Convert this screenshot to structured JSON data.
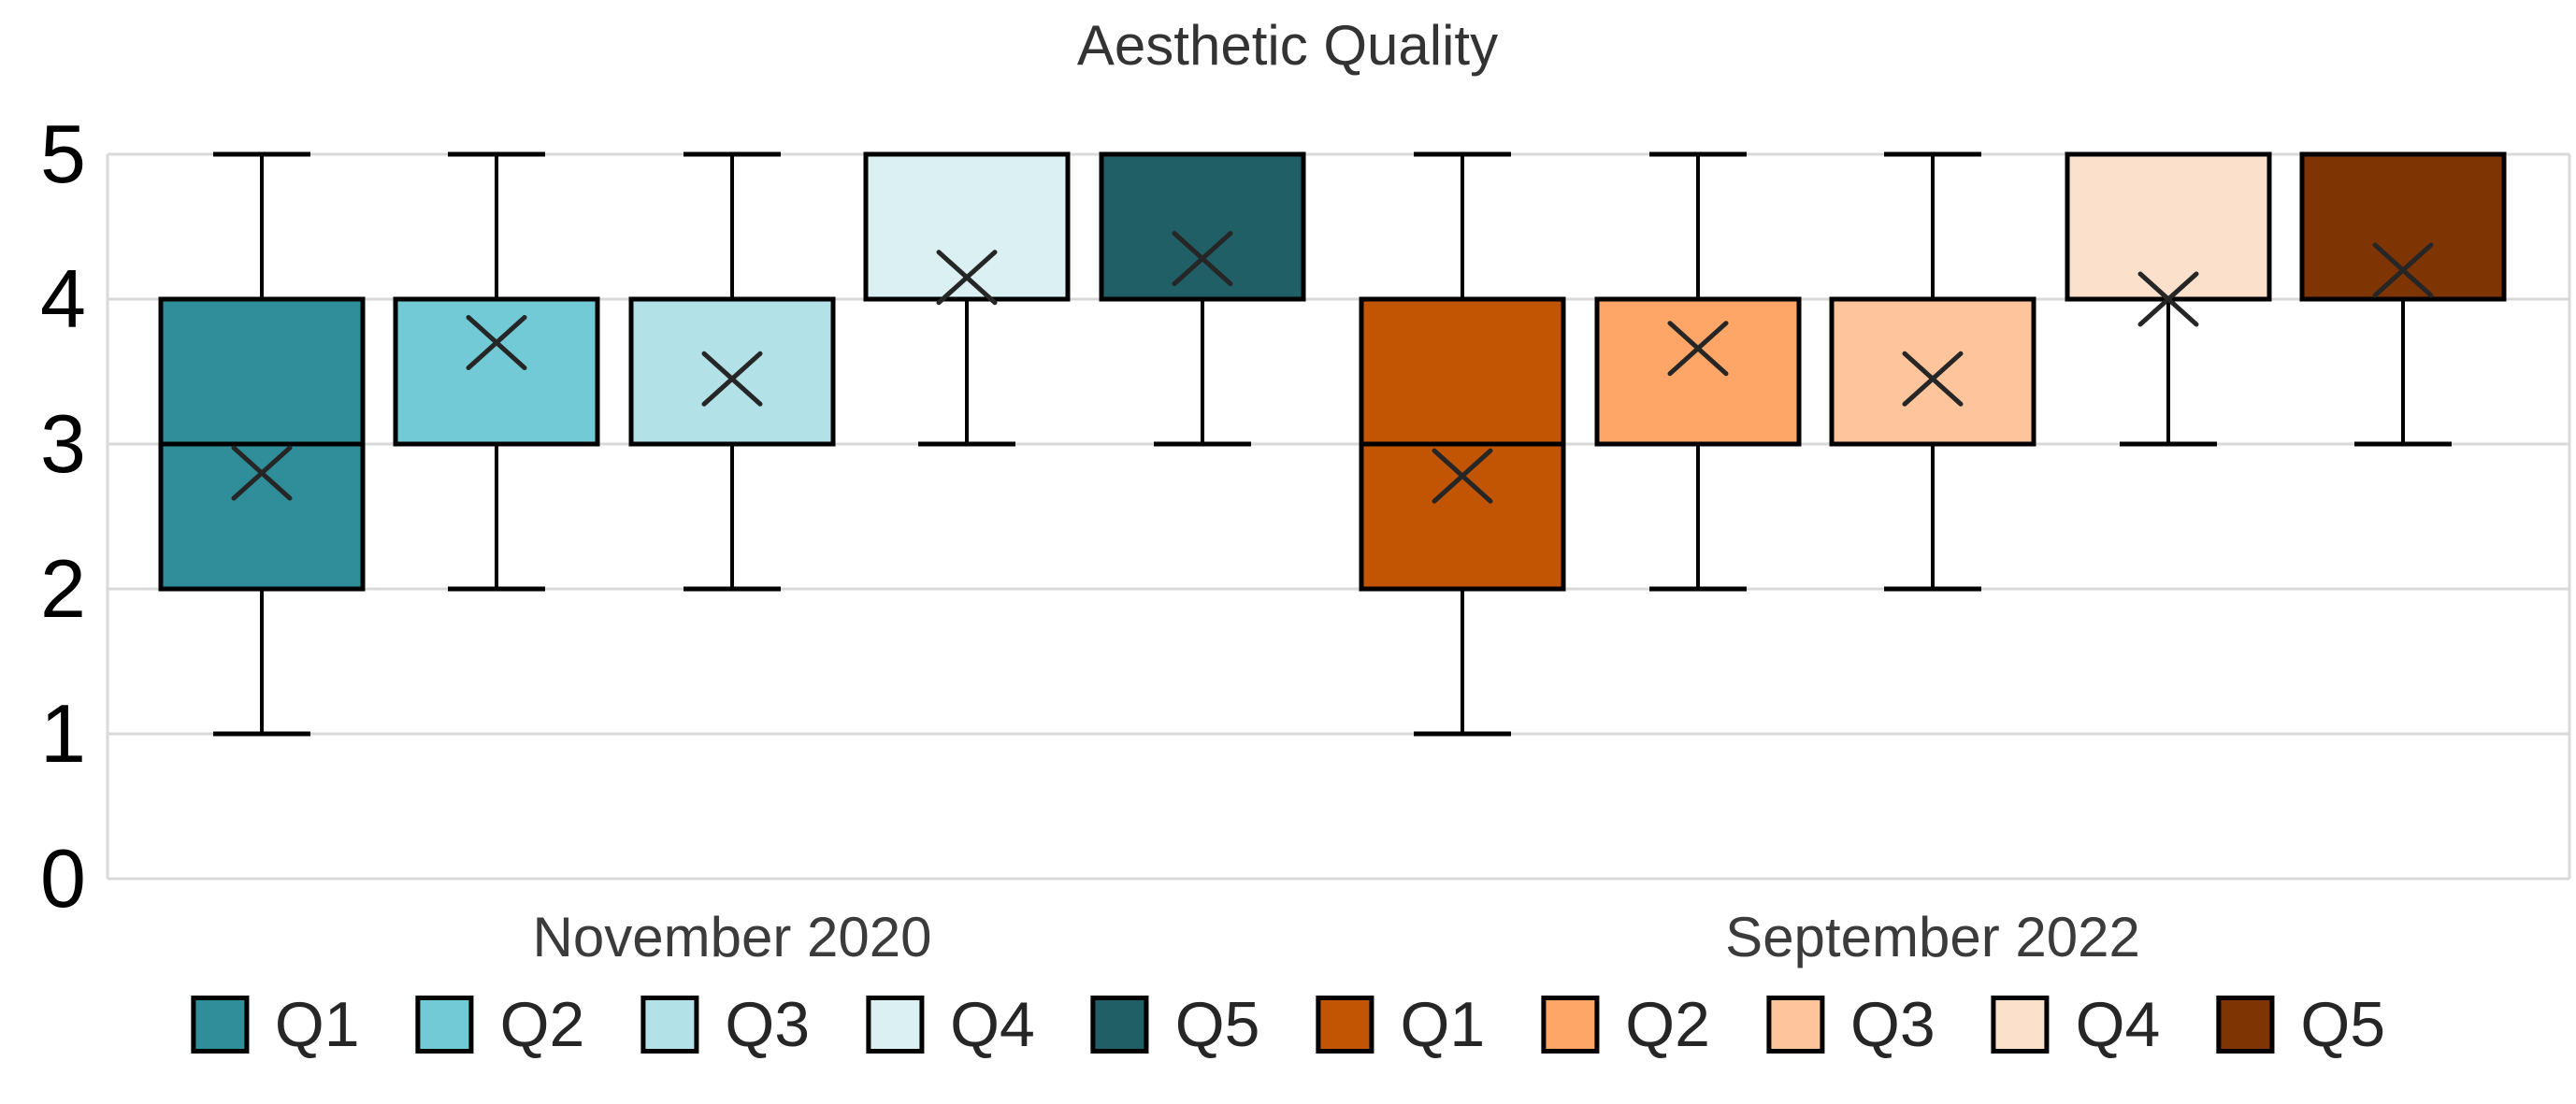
{
  "chart_data": {
    "type": "boxplot",
    "title": "Aesthetic Quality",
    "xlabel": "",
    "ylabel": "",
    "ylim": [
      0,
      5
    ],
    "yticks": [
      "0",
      "1",
      "2",
      "3",
      "4",
      "5"
    ],
    "grid": "horizontal",
    "legend_position": "bottom",
    "groups": [
      {
        "label": "November 2020",
        "series": [
          {
            "name": "Q1",
            "color": "#2F8E9A",
            "min": 1,
            "q1": 2,
            "median": 3,
            "q3": 4,
            "max": 5,
            "mean": 2.8
          },
          {
            "name": "Q2",
            "color": "#72CAD6",
            "min": 2,
            "q1": 3,
            "median": 4,
            "q3": 4,
            "max": 5,
            "mean": 3.7
          },
          {
            "name": "Q3",
            "color": "#B2E2E8",
            "min": 2,
            "q1": 3,
            "median": 4,
            "q3": 4,
            "max": 5,
            "mean": 3.45
          },
          {
            "name": "Q4",
            "color": "#DBF0F2",
            "min": 3,
            "q1": 4,
            "median": 4,
            "q3": 5,
            "max": 5,
            "mean": 4.15
          },
          {
            "name": "Q5",
            "color": "#215F66",
            "min": 3,
            "q1": 4,
            "median": 4,
            "q3": 5,
            "max": 5,
            "mean": 4.28
          }
        ]
      },
      {
        "label": "September 2022",
        "series": [
          {
            "name": "Q1",
            "color": "#C25504",
            "min": 1,
            "q1": 2,
            "median": 3,
            "q3": 4,
            "max": 5,
            "mean": 2.78
          },
          {
            "name": "Q2",
            "color": "#FDA667",
            "min": 2,
            "q1": 3,
            "median": 4,
            "q3": 4,
            "max": 5,
            "mean": 3.66
          },
          {
            "name": "Q3",
            "color": "#FEC49C",
            "min": 2,
            "q1": 3,
            "median": 4,
            "q3": 4,
            "max": 5,
            "mean": 3.45
          },
          {
            "name": "Q4",
            "color": "#FBE0CC",
            "min": 3,
            "q1": 4,
            "median": 4,
            "q3": 5,
            "max": 5,
            "mean": 4.0
          },
          {
            "name": "Q5",
            "color": "#7F3503",
            "min": 3,
            "q1": 4,
            "median": 4,
            "q3": 5,
            "max": 5,
            "mean": 4.2
          }
        ]
      }
    ],
    "styles": {
      "background": "#FFFFFF",
      "gridline_color": "#D9D9D9",
      "box_border_color": "#000000",
      "whisker_color": "#000000",
      "median_color": "#000000",
      "mean_marker": "x",
      "mean_marker_color": "#262626",
      "title_color": "#333333",
      "group_label_color": "#3B3B3B",
      "ytick_color": "#000000"
    }
  }
}
